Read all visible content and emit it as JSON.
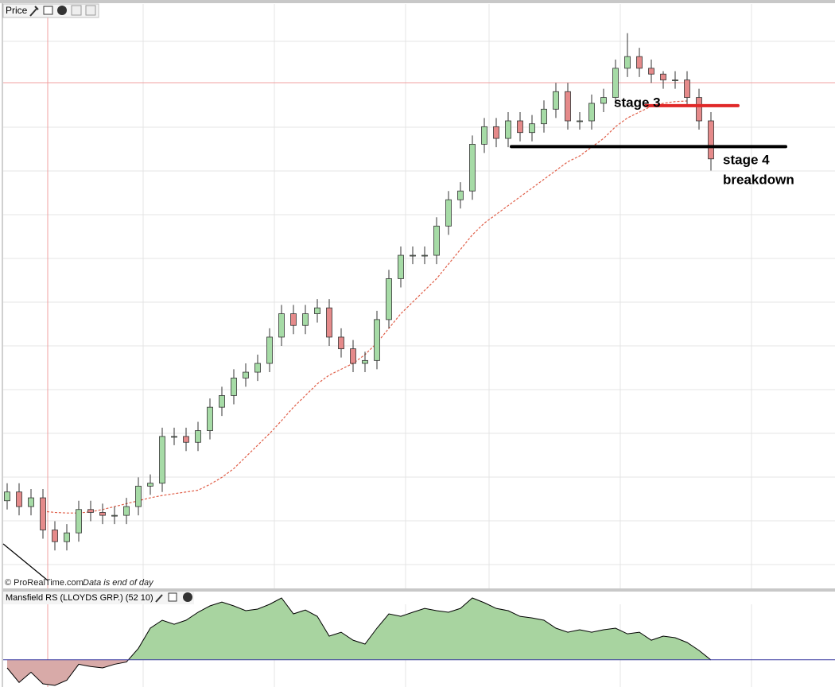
{
  "chart_data": {
    "type": "candlestick",
    "title": "Price",
    "source": "© ProRealTime.com",
    "note": "Data is end of day",
    "ylim": [
      0,
      100
    ],
    "up_color": "#a6dba6",
    "down_color": "#e58a8a",
    "open": [
      15,
      16.5,
      14,
      15.5,
      10,
      8,
      9.5,
      13.5,
      13,
      12.5,
      12.5,
      14,
      17.5,
      18,
      26,
      26,
      25,
      27,
      31,
      33,
      36,
      37,
      38.5,
      43,
      47,
      45,
      47,
      48,
      43,
      41,
      38.5,
      39,
      46,
      53,
      57,
      57,
      57,
      62,
      66.5,
      68,
      76,
      79,
      77,
      80,
      78,
      79.5,
      82,
      85,
      80,
      80,
      83,
      84,
      89,
      91,
      89,
      88,
      87,
      87,
      84,
      80
    ],
    "high": [
      18,
      18,
      17,
      17,
      11.5,
      11,
      15,
      15,
      14.5,
      14,
      15.5,
      19,
      19.5,
      27.5,
      27.5,
      27.5,
      28.5,
      32.5,
      34.5,
      37.5,
      38.5,
      40,
      44.5,
      48.5,
      48.5,
      48.5,
      49.5,
      49.5,
      44.5,
      42.5,
      40.5,
      47.5,
      54.5,
      58.5,
      58.5,
      58.5,
      63.5,
      68,
      69.5,
      77.5,
      80.5,
      80.5,
      81.5,
      81.5,
      81,
      83.5,
      86.5,
      86.5,
      81.5,
      84.5,
      85.5,
      90.5,
      95,
      92.5,
      90.5,
      88.5,
      88.5,
      88.5,
      85.5,
      81.5
    ],
    "low": [
      13.5,
      12.5,
      12.5,
      8.5,
      6.5,
      6.5,
      8,
      11.5,
      11,
      11,
      11,
      12.5,
      16,
      16.5,
      24.5,
      23.5,
      23.5,
      25.5,
      29.5,
      31.5,
      34.5,
      35.5,
      37,
      41.5,
      43.5,
      43.5,
      45.5,
      41.5,
      39.5,
      37,
      37,
      37.5,
      44.5,
      51.5,
      55.5,
      55.5,
      55.5,
      60.5,
      65,
      66.5,
      74.5,
      75.5,
      75.5,
      76.5,
      76.5,
      78,
      80.5,
      78.5,
      78.5,
      78.5,
      81.5,
      82.5,
      87.5,
      87.5,
      86.5,
      85.5,
      85.5,
      82.5,
      78.5,
      71.5
    ],
    "close": [
      16.5,
      14,
      15.5,
      10,
      8,
      9.5,
      13.5,
      13,
      12.5,
      12.5,
      14,
      17.5,
      18,
      26,
      26,
      25,
      27,
      31,
      33,
      36,
      37,
      38.5,
      43,
      47,
      45,
      47,
      48,
      43,
      41,
      38.5,
      39,
      46,
      53,
      57,
      57,
      57,
      62,
      66.5,
      68,
      76,
      79,
      77,
      80,
      78,
      79.5,
      82,
      85,
      80,
      80,
      83,
      84,
      89,
      91,
      89,
      88,
      87,
      87,
      84,
      80,
      73.5
    ],
    "ma": {
      "color": "#e0604a",
      "values": [
        null,
        null,
        null,
        13.2,
        13,
        12.9,
        12.9,
        13.1,
        13.5,
        14,
        14.5,
        15,
        15.5,
        15.9,
        16.2,
        16.5,
        16.8,
        17.8,
        19,
        20.5,
        22.5,
        24.5,
        26.5,
        28.7,
        31,
        33,
        35,
        36.5,
        37.5,
        38.5,
        40,
        42,
        44.5,
        47,
        49,
        51,
        53,
        55.5,
        58,
        60.5,
        62.5,
        64,
        65.5,
        67,
        68.5,
        70,
        71.5,
        73,
        74,
        75.5,
        77,
        79,
        80.5,
        81.5,
        82.5,
        83,
        83.3,
        83.4,
        null,
        null
      ]
    },
    "levels": [
      {
        "value": 82.6,
        "color": "#e02828"
      },
      {
        "value": 75.6,
        "color": "#000000"
      }
    ],
    "annotations": [
      "stage 3",
      "stage 4",
      "breakdown"
    ],
    "indicator": {
      "title": "Mansfield RS (LLOYDS GRP.) (52 10)",
      "ylim": [
        -1.2,
        3
      ],
      "color": "#a8d4a0",
      "neg_color": "#d8aaa8",
      "values": [
        -0.36,
        -1.0,
        -0.55,
        -1.06,
        -1.13,
        -0.9,
        -0.2,
        -0.3,
        -0.36,
        -0.2,
        -0.1,
        0.5,
        1.39,
        1.74,
        1.56,
        1.74,
        2.09,
        2.37,
        2.54,
        2.37,
        2.16,
        2.23,
        2.44,
        2.72,
        2.02,
        2.19,
        1.91,
        1.04,
        1.21,
        0.86,
        0.69,
        1.39,
        2.02,
        1.91,
        2.09,
        2.26,
        2.16,
        2.09,
        2.26,
        2.72,
        2.51,
        2.26,
        2.16,
        1.91,
        1.84,
        1.74,
        1.39,
        1.21,
        1.32,
        1.21,
        1.32,
        1.39,
        1.14,
        1.21,
        0.86,
        1.04,
        0.97,
        0.76,
        0.41,
        -0.01
      ]
    }
  }
}
